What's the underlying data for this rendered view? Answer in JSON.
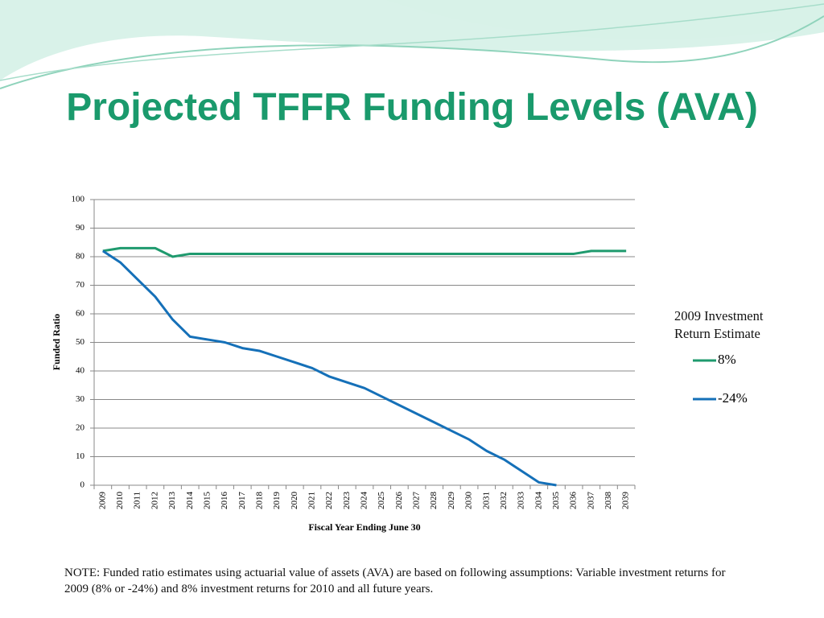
{
  "title": "Projected TFFR Funding Levels (AVA)",
  "note": "NOTE: Funded ratio estimates using actuarial value of assets (AVA) are based on following assumptions: Variable investment returns for 2009 (8% or -24%) and 8% investment returns for 2010 and all future years.",
  "chart_data": {
    "type": "line",
    "x_label": "Fiscal Year Ending June 30",
    "y_label": "Funded Ratio",
    "legend_title": "2009 Investment Return Estimate",
    "categories": [
      "2009",
      "2010",
      "2011",
      "2012",
      "2013",
      "2014",
      "2015",
      "2016",
      "2017",
      "2018",
      "2019",
      "2020",
      "2021",
      "2022",
      "2023",
      "2024",
      "2025",
      "2026",
      "2027",
      "2028",
      "2029",
      "2030",
      "2031",
      "2032",
      "2033",
      "2034",
      "2035",
      "2036",
      "2037",
      "2038",
      "2039"
    ],
    "series": [
      {
        "name": "8%",
        "color": "#1f9a6e",
        "values": [
          82,
          83,
          83,
          83,
          80,
          81,
          81,
          81,
          81,
          81,
          81,
          81,
          81,
          81,
          81,
          81,
          81,
          81,
          81,
          81,
          81,
          81,
          81,
          81,
          81,
          81,
          81,
          81,
          82,
          82,
          82
        ]
      },
      {
        "name": "-24%",
        "color": "#1570b8",
        "values": [
          82,
          78,
          72,
          66,
          58,
          52,
          51,
          50,
          48,
          47,
          45,
          43,
          41,
          38,
          36,
          34,
          31,
          28,
          25,
          22,
          19,
          16,
          12,
          9,
          5,
          1,
          0,
          null,
          null,
          null,
          null
        ]
      }
    ],
    "ylim": [
      0,
      100
    ],
    "yticks": [
      0,
      10,
      20,
      30,
      40,
      50,
      60,
      70,
      80,
      90,
      100
    ],
    "grid": true
  }
}
